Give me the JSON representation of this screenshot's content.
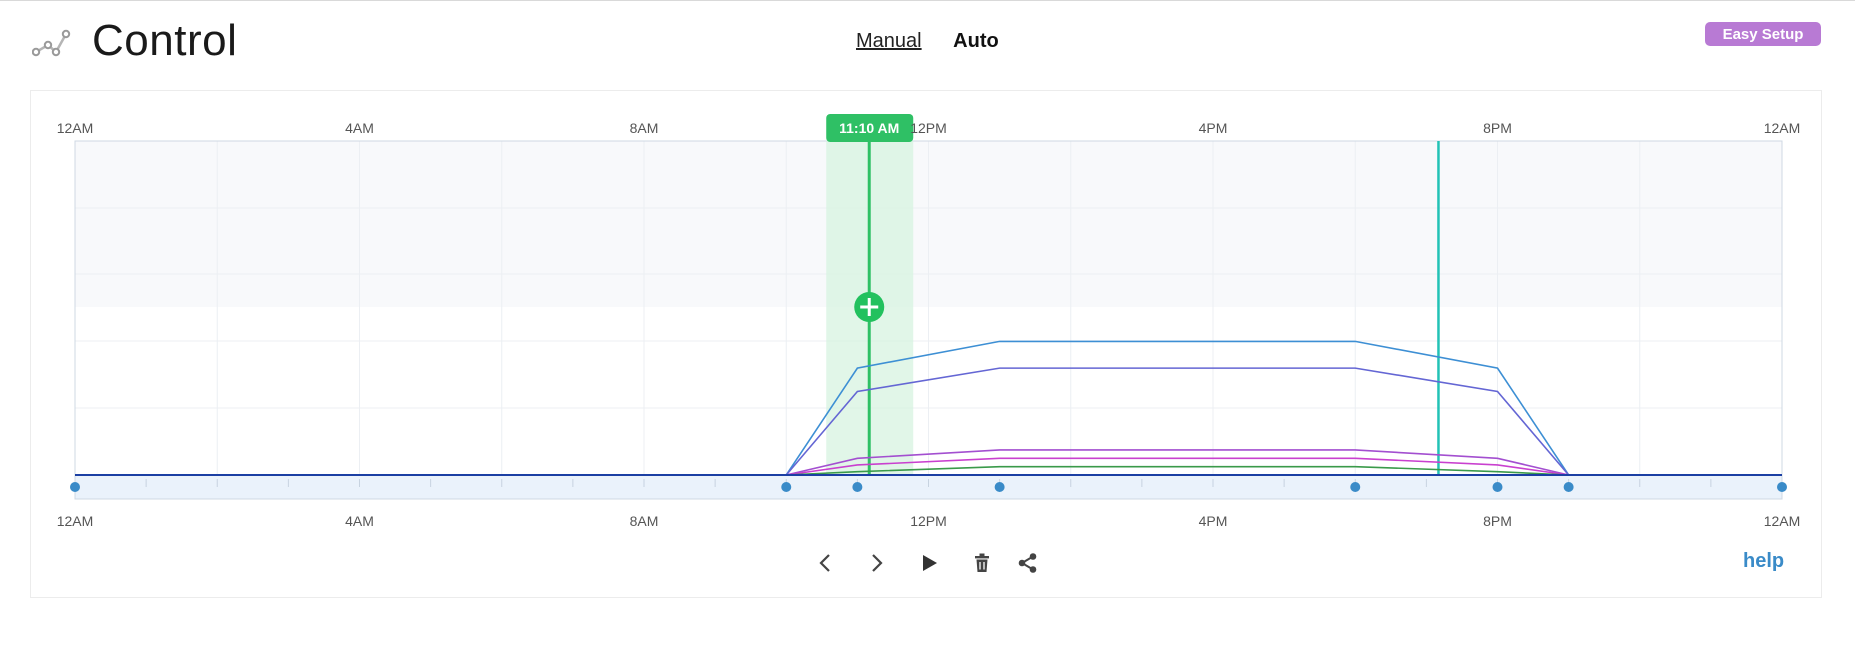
{
  "header": {
    "title": "Control",
    "icon": "line-chart-icon",
    "tabs": [
      {
        "label": "Manual",
        "active": false
      },
      {
        "label": "Auto",
        "active": true
      }
    ],
    "easy_setup_label": "Easy Setup"
  },
  "chart": {
    "top_ticks": [
      "12AM",
      "4AM",
      "8AM",
      "12PM",
      "4PM",
      "8PM",
      "12AM"
    ],
    "bottom_ticks": [
      "12AM",
      "4AM",
      "8AM",
      "12PM",
      "4PM",
      "8PM",
      "12AM"
    ],
    "current_time_label": "11:10 AM",
    "current_time_hours": 11.1667,
    "marker_time_hours": 19.17,
    "colors": {
      "current_time": "#2fc065",
      "marker": "#22c2b6",
      "baseline": "#1b3fa3",
      "point": "#3a8bc8"
    }
  },
  "chart_data": {
    "type": "line",
    "x_unit": "hour of day",
    "xlim": [
      0,
      24
    ],
    "ylim": [
      0,
      100
    ],
    "x": [
      0,
      10,
      11,
      13,
      18,
      20,
      21,
      24
    ],
    "series": [
      {
        "color": "#3d8fd4",
        "values": [
          0,
          0,
          32,
          40,
          40,
          32,
          0,
          0
        ]
      },
      {
        "color": "#6466d4",
        "values": [
          0,
          0,
          25,
          32,
          32,
          25,
          0,
          0
        ]
      },
      {
        "color": "#a34fd0",
        "values": [
          0,
          0,
          5,
          7.5,
          7.5,
          5,
          0,
          0
        ]
      },
      {
        "color": "#c940cf",
        "values": [
          0,
          0,
          3,
          5,
          5,
          3,
          0,
          0
        ]
      },
      {
        "color": "#3a9a4a",
        "values": [
          0,
          0,
          1,
          2.5,
          2.5,
          1,
          0,
          0
        ]
      }
    ],
    "control_points_x": [
      0,
      10,
      11,
      13,
      18,
      20,
      21,
      24
    ]
  },
  "controls": {
    "prev_icon": "chevron-left-icon",
    "next_icon": "chevron-right-icon",
    "play_icon": "play-icon",
    "delete_icon": "trash-icon",
    "share_icon": "share-icon",
    "help_label": "help"
  }
}
